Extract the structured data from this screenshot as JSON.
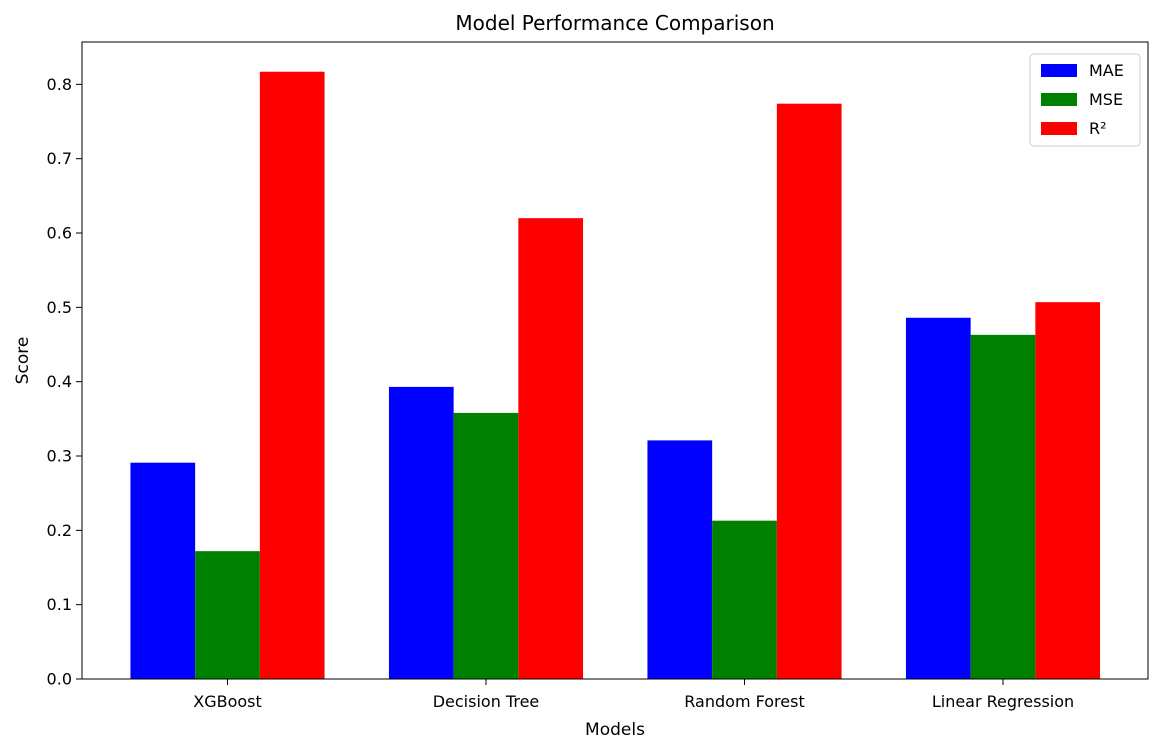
{
  "chart_data": {
    "type": "bar",
    "title": "Model Performance Comparison",
    "xlabel": "Models",
    "ylabel": "Score",
    "categories": [
      "XGBoost",
      "Decision Tree",
      "Random Forest",
      "Linear Regression"
    ],
    "series": [
      {
        "name": "MAE",
        "color": "#0000ff",
        "values": [
          0.291,
          0.393,
          0.321,
          0.486
        ]
      },
      {
        "name": "MSE",
        "color": "#008000",
        "values": [
          0.172,
          0.358,
          0.213,
          0.463
        ]
      },
      {
        "name": "R²",
        "color": "#ff0000",
        "values": [
          0.817,
          0.62,
          0.774,
          0.507
        ]
      }
    ],
    "ylim": [
      0,
      0.857
    ],
    "yticks": [
      "0.0",
      "0.1",
      "0.2",
      "0.3",
      "0.4",
      "0.5",
      "0.6",
      "0.7",
      "0.8"
    ],
    "grid": false,
    "legend_position": "top-right"
  }
}
